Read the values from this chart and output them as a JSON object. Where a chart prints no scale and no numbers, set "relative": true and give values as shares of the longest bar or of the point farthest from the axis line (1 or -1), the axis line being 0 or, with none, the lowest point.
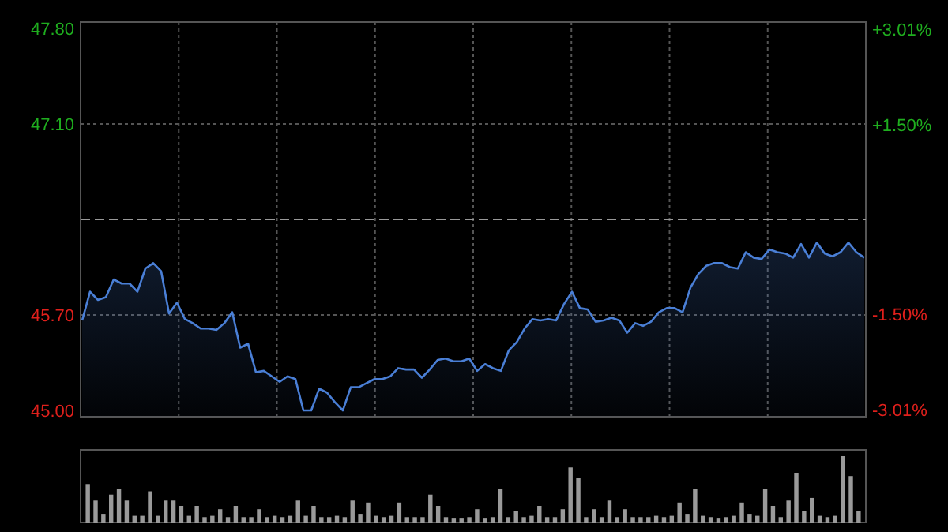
{
  "chart_data": [
    {
      "type": "area",
      "categories": [
        null,
        null,
        null,
        null,
        null,
        null,
        null,
        null,
        null,
        null,
        null,
        null,
        null,
        null,
        null,
        null,
        null,
        null,
        null,
        null,
        null,
        null,
        null,
        null,
        null,
        null,
        null,
        null,
        null,
        null,
        null,
        null,
        null,
        null,
        null,
        null,
        null,
        null,
        null,
        null,
        null,
        null,
        null,
        null,
        null,
        null,
        null,
        null,
        null,
        null,
        null,
        null,
        null,
        null,
        null,
        null,
        null,
        null,
        null,
        null,
        null,
        null,
        null,
        null,
        null,
        null,
        null,
        null,
        null,
        null,
        null,
        null,
        null,
        null,
        null,
        null,
        null,
        null,
        null,
        null,
        null,
        null,
        null,
        null,
        null,
        null,
        null,
        null,
        null,
        null,
        null,
        null,
        null,
        null,
        null,
        null,
        null,
        null,
        null,
        null
      ],
      "series": [
        {
          "color": "#4a7fd6",
          "values": [
            45.66,
            45.87,
            45.81,
            45.83,
            45.96,
            45.93,
            45.93,
            45.87,
            46.04,
            46.08,
            46.02,
            45.71,
            45.79,
            45.67,
            45.64,
            45.6,
            45.6,
            45.59,
            45.64,
            45.72,
            45.46,
            45.49,
            45.28,
            45.29,
            45.25,
            45.21,
            45.25,
            45.23,
            45.0,
            45.0,
            45.16,
            45.13,
            45.06,
            45.0,
            45.17,
            45.17,
            45.2,
            45.23,
            45.23,
            45.25,
            45.31,
            45.3,
            45.3,
            45.24,
            45.3,
            45.37,
            45.38,
            45.36,
            45.36,
            45.38,
            45.29,
            45.34,
            45.31,
            45.29,
            45.44,
            45.5,
            45.6,
            45.67,
            45.66,
            45.67,
            45.66,
            45.78,
            45.87,
            45.75,
            45.74,
            45.65,
            45.66,
            45.68,
            45.66,
            45.57,
            45.64,
            45.62,
            45.65,
            45.72,
            45.75,
            45.75,
            45.72,
            45.9,
            46.0,
            46.06,
            46.08,
            46.08,
            46.05,
            46.04,
            46.16,
            46.12,
            46.11,
            46.18,
            46.16,
            46.15,
            46.12,
            46.22,
            46.12,
            46.23,
            46.15,
            46.13,
            46.16,
            46.23,
            46.16,
            46.12
          ]
        }
      ],
      "ylim": [
        45.0,
        47.8
      ],
      "yticks": [
        {
          "value": 45.0,
          "label": "45.00"
        },
        {
          "value": 45.7,
          "label": "45.70"
        },
        {
          "value": 47.1,
          "label": "47.10"
        },
        {
          "value": 47.8,
          "label": "47.80"
        }
      ],
      "y2lim": [
        -3.02,
        3.02
      ],
      "y2ticks": [
        {
          "value": -3.01,
          "label": "-3.01%"
        },
        {
          "value": -1.5,
          "label": "-1.50%"
        },
        {
          "value": 1.5,
          "label": "+1.50%"
        },
        {
          "value": 3.01,
          "label": "+3.01%"
        }
      ],
      "ref_lines": [
        {
          "axis": "y",
          "value": 46.4,
          "color": "#9a9a9a",
          "line_style": "dashed"
        }
      ],
      "grid": true
    },
    {
      "type": "bar",
      "relative": true,
      "color": "#9a9a9a",
      "categories": [
        null,
        null,
        null,
        null,
        null,
        null,
        null,
        null,
        null,
        null,
        null,
        null,
        null,
        null,
        null,
        null,
        null,
        null,
        null,
        null,
        null,
        null,
        null,
        null,
        null,
        null,
        null,
        null,
        null,
        null,
        null,
        null,
        null,
        null,
        null,
        null,
        null,
        null,
        null,
        null,
        null,
        null,
        null,
        null,
        null,
        null,
        null,
        null,
        null,
        null,
        null,
        null,
        null,
        null,
        null,
        null,
        null,
        null,
        null,
        null,
        null,
        null,
        null,
        null,
        null,
        null,
        null,
        null,
        null,
        null,
        null,
        null,
        null,
        null,
        null,
        null,
        null,
        null,
        null,
        null,
        null,
        null,
        null,
        null,
        null,
        null,
        null,
        null,
        null,
        null,
        null,
        null,
        null,
        null,
        null,
        null,
        null,
        null,
        null,
        null
      ],
      "values": [
        0.58,
        0.33,
        0.13,
        0.42,
        0.5,
        0.33,
        0.1,
        0.1,
        0.47,
        0.1,
        0.33,
        0.33,
        0.25,
        0.1,
        0.25,
        0.08,
        0.1,
        0.2,
        0.08,
        0.25,
        0.08,
        0.08,
        0.2,
        0.08,
        0.1,
        0.08,
        0.1,
        0.33,
        0.1,
        0.25,
        0.08,
        0.08,
        0.1,
        0.08,
        0.33,
        0.13,
        0.3,
        0.1,
        0.08,
        0.1,
        0.3,
        0.08,
        0.08,
        0.08,
        0.42,
        0.25,
        0.08,
        0.07,
        0.07,
        0.08,
        0.2,
        0.07,
        0.08,
        0.5,
        0.08,
        0.17,
        0.08,
        0.1,
        0.25,
        0.08,
        0.08,
        0.2,
        0.83,
        0.67,
        0.08,
        0.2,
        0.08,
        0.33,
        0.08,
        0.2,
        0.08,
        0.08,
        0.08,
        0.1,
        0.08,
        0.1,
        0.3,
        0.13,
        0.5,
        0.1,
        0.08,
        0.07,
        0.08,
        0.1,
        0.3,
        0.13,
        0.1,
        0.5,
        0.25,
        0.08,
        0.33,
        0.75,
        0.17,
        0.37,
        0.1,
        0.08,
        0.1,
        1,
        0.7,
        0.17
      ]
    }
  ]
}
